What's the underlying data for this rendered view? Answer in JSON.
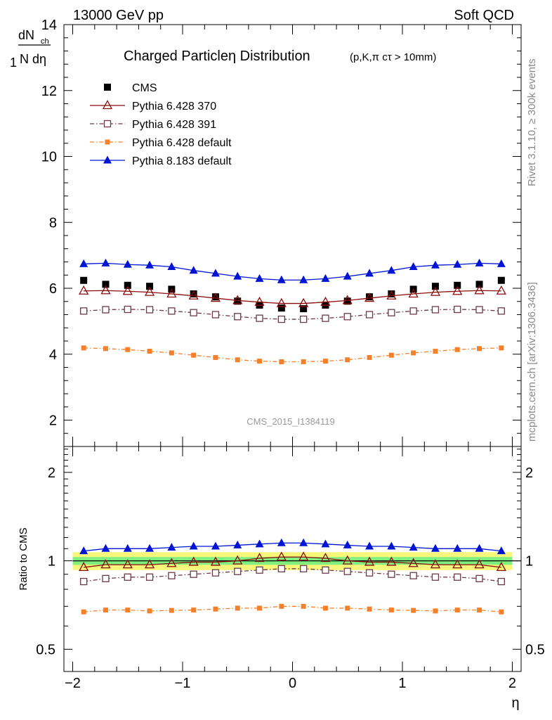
{
  "header": {
    "left": "13000 GeV pp",
    "right": "Soft QCD"
  },
  "side_text": {
    "rivet": "Rivet 3.1.10, ≥ 300k events",
    "mcplots": "mcplots.cern.ch [arXiv:1306.3436]"
  },
  "watermark": "CMS_2015_I1384119",
  "chart_data": [
    {
      "type": "line",
      "title": "Charged Particleη Distribution",
      "subtitle": "(p,K,π cτ > 10mm)",
      "ylabel_num": "dN",
      "ylabel_num_sub": "ch",
      "ylabel_den": "N dη",
      "ylabel_one": "1",
      "xlabel": "",
      "ylim": [
        1.2,
        14
      ],
      "xlim": [
        -2.08,
        2.08
      ],
      "y_ticks": [
        2,
        4,
        6,
        8,
        10,
        12,
        14
      ],
      "y_tick_labels": [
        "2",
        "4",
        "6",
        "8",
        "10",
        "12",
        "14"
      ],
      "x": [
        -1.9,
        -1.7,
        -1.5,
        -1.3,
        -1.1,
        -0.9,
        -0.7,
        -0.5,
        -0.3,
        -0.1,
        0.1,
        0.3,
        0.5,
        0.7,
        0.9,
        1.1,
        1.3,
        1.5,
        1.7,
        1.9
      ],
      "legend_position": "top-left",
      "series": [
        {
          "name": "CMS",
          "color": "#000000",
          "marker": "square-filled",
          "line": "none",
          "values": [
            6.24,
            6.12,
            6.09,
            6.06,
            5.97,
            5.83,
            5.74,
            5.61,
            5.49,
            5.4,
            5.38,
            5.49,
            5.61,
            5.74,
            5.83,
            5.97,
            6.06,
            6.09,
            6.12,
            6.24
          ]
        },
        {
          "name": "Pythia 6.428 370",
          "color": "#8b0a0a",
          "marker": "triangle-open",
          "line": "solid",
          "values": [
            5.92,
            5.93,
            5.91,
            5.88,
            5.83,
            5.77,
            5.7,
            5.63,
            5.58,
            5.54,
            5.54,
            5.58,
            5.63,
            5.7,
            5.77,
            5.83,
            5.88,
            5.91,
            5.93,
            5.92
          ]
        },
        {
          "name": "Pythia 6.428 391",
          "color": "#6b3a4a",
          "marker": "square-open",
          "line": "dashdot",
          "values": [
            5.31,
            5.35,
            5.36,
            5.35,
            5.31,
            5.26,
            5.2,
            5.14,
            5.09,
            5.06,
            5.06,
            5.09,
            5.14,
            5.2,
            5.26,
            5.31,
            5.35,
            5.36,
            5.35,
            5.31
          ]
        },
        {
          "name": "Pythia 6.428 default",
          "color": "#f5802a",
          "marker": "square-filled-small",
          "line": "dashdot",
          "values": [
            4.19,
            4.17,
            4.14,
            4.09,
            4.04,
            3.97,
            3.9,
            3.83,
            3.79,
            3.77,
            3.77,
            3.79,
            3.83,
            3.9,
            3.97,
            4.04,
            4.09,
            4.14,
            4.17,
            4.19
          ]
        },
        {
          "name": "Pythia 8.183 default",
          "color": "#0014d4",
          "marker": "triangle-filled",
          "line": "solid",
          "values": [
            6.74,
            6.76,
            6.72,
            6.7,
            6.65,
            6.54,
            6.45,
            6.36,
            6.29,
            6.25,
            6.25,
            6.29,
            6.36,
            6.45,
            6.54,
            6.65,
            6.7,
            6.72,
            6.76,
            6.74
          ]
        }
      ]
    },
    {
      "type": "line",
      "ylabel": "Ratio to CMS",
      "xlabel": "η",
      "yscale": "log",
      "ylim": [
        0.42,
        2.45
      ],
      "xlim": [
        -2.08,
        2.08
      ],
      "y_ticks": [
        0.5,
        1,
        2
      ],
      "y_tick_labels": [
        "0.5",
        "1",
        "2"
      ],
      "x_ticks": [
        -2,
        -1,
        0,
        1,
        2
      ],
      "x_tick_labels": [
        "−2",
        "−1",
        "0",
        "1",
        "2"
      ],
      "uncertainty_band": {
        "stat_color": "#7ff07f",
        "total_color": "#f6f67a",
        "stat": 0.03,
        "total": 0.07
      },
      "x": [
        -1.9,
        -1.7,
        -1.5,
        -1.3,
        -1.1,
        -0.9,
        -0.7,
        -0.5,
        -0.3,
        -0.1,
        0.1,
        0.3,
        0.5,
        0.7,
        0.9,
        1.1,
        1.3,
        1.5,
        1.7,
        1.9
      ],
      "series": [
        {
          "name": "Pythia 6.428 370",
          "color": "#8b0a0a",
          "marker": "triangle-open",
          "line": "solid",
          "values": [
            0.95,
            0.97,
            0.97,
            0.97,
            0.98,
            0.99,
            0.99,
            1.0,
            1.02,
            1.03,
            1.03,
            1.02,
            1.0,
            0.99,
            0.99,
            0.98,
            0.97,
            0.97,
            0.97,
            0.95
          ]
        },
        {
          "name": "Pythia 6.428 391",
          "color": "#6b3a4a",
          "marker": "square-open",
          "line": "dashdot",
          "values": [
            0.85,
            0.87,
            0.88,
            0.88,
            0.89,
            0.9,
            0.91,
            0.92,
            0.93,
            0.94,
            0.94,
            0.93,
            0.92,
            0.91,
            0.9,
            0.89,
            0.88,
            0.88,
            0.87,
            0.85
          ]
        },
        {
          "name": "Pythia 6.428 default",
          "color": "#f5802a",
          "marker": "square-filled-small",
          "line": "dashdot",
          "values": [
            0.67,
            0.68,
            0.68,
            0.675,
            0.678,
            0.68,
            0.685,
            0.69,
            0.69,
            0.7,
            0.7,
            0.69,
            0.69,
            0.685,
            0.68,
            0.678,
            0.675,
            0.68,
            0.68,
            0.67
          ]
        },
        {
          "name": "Pythia 8.183 default",
          "color": "#0014d4",
          "marker": "triangle-filled",
          "line": "solid",
          "values": [
            1.08,
            1.1,
            1.1,
            1.1,
            1.11,
            1.12,
            1.12,
            1.13,
            1.14,
            1.15,
            1.15,
            1.14,
            1.13,
            1.12,
            1.12,
            1.11,
            1.1,
            1.1,
            1.1,
            1.08
          ]
        }
      ]
    }
  ]
}
